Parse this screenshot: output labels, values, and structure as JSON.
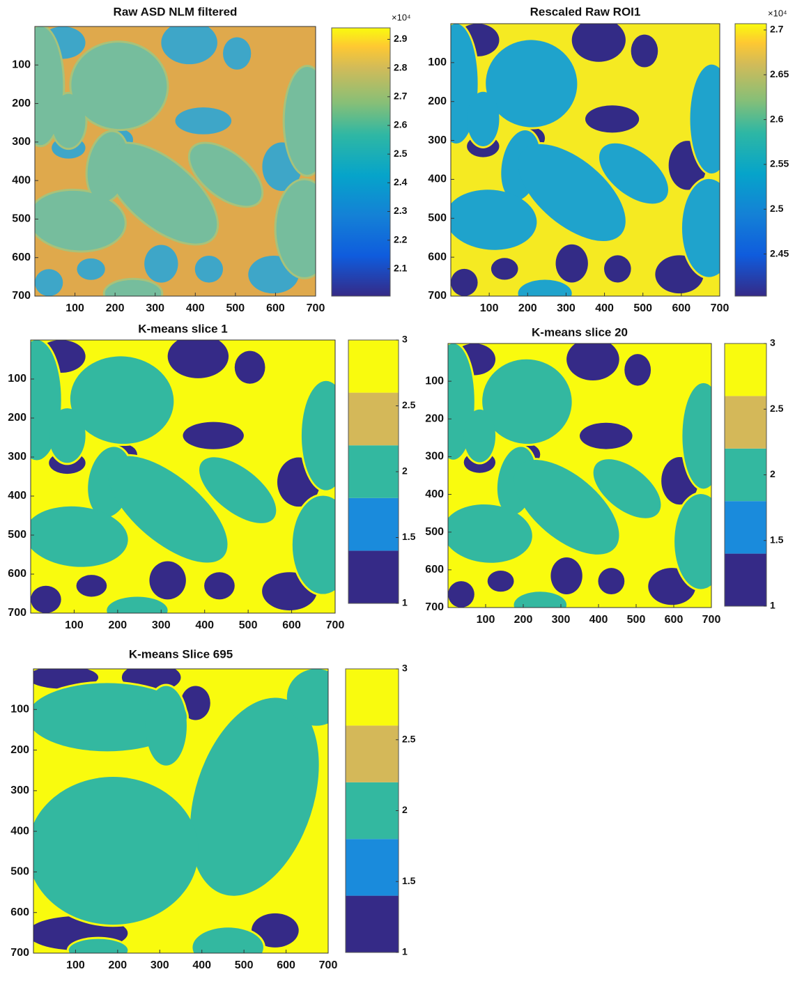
{
  "chart_data": [
    {
      "type": "image",
      "title": "Raw ASD NLM filtered",
      "xlim": [
        0,
        700
      ],
      "ylim": [
        0,
        700
      ],
      "xticks": [
        100,
        200,
        300,
        400,
        500,
        600,
        700
      ],
      "yticks": [
        100,
        200,
        300,
        400,
        500,
        600,
        700
      ],
      "colorbar": {
        "colormap": "parula",
        "lim": [
          2.005,
          2.94
        ],
        "ticks": [
          2.1,
          2.2,
          2.3,
          2.4,
          2.5,
          2.6,
          2.7,
          2.8,
          2.9
        ],
        "multiplier": "×10⁴"
      }
    },
    {
      "type": "image",
      "title": "Rescaled Raw ROI1",
      "xlim": [
        0,
        700
      ],
      "ylim": [
        0,
        700
      ],
      "xticks": [
        100,
        200,
        300,
        400,
        500,
        600,
        700
      ],
      "yticks": [
        100,
        200,
        300,
        400,
        500,
        600,
        700
      ],
      "colorbar": {
        "colormap": "parula",
        "lim": [
          2.403,
          2.707
        ],
        "ticks": [
          2.45,
          2.5,
          2.55,
          2.6,
          2.65,
          2.7
        ],
        "multiplier": "×10⁴"
      }
    },
    {
      "type": "image",
      "title": "K-means slice 1",
      "xlim": [
        0,
        700
      ],
      "ylim": [
        0,
        700
      ],
      "xticks": [
        100,
        200,
        300,
        400,
        500,
        600,
        700
      ],
      "yticks": [
        100,
        200,
        300,
        400,
        500,
        600,
        700
      ],
      "colorbar": {
        "lim": [
          1,
          3
        ],
        "ticks": [
          1,
          1.5,
          2,
          2.5,
          3
        ],
        "colors": [
          "#352a87",
          "#1a8bdc",
          "#33b8a0",
          "#d4b859",
          "#f9fb0e"
        ]
      }
    },
    {
      "type": "image",
      "title": "K-means slice 20",
      "xlim": [
        0,
        700
      ],
      "ylim": [
        0,
        700
      ],
      "xticks": [
        100,
        200,
        300,
        400,
        500,
        600,
        700
      ],
      "yticks": [
        100,
        200,
        300,
        400,
        500,
        600,
        700
      ],
      "colorbar": {
        "lim": [
          1,
          3
        ],
        "ticks": [
          1,
          1.5,
          2,
          2.5,
          3
        ],
        "colors": [
          "#352a87",
          "#1a8bdc",
          "#33b8a0",
          "#d4b859",
          "#f9fb0e"
        ]
      }
    },
    {
      "type": "image",
      "title": "K-means Slice 695",
      "xlim": [
        0,
        700
      ],
      "ylim": [
        0,
        700
      ],
      "xticks": [
        100,
        200,
        300,
        400,
        500,
        600,
        700
      ],
      "yticks": [
        100,
        200,
        300,
        400,
        500,
        600,
        700
      ],
      "colorbar": {
        "lim": [
          1,
          3
        ],
        "ticks": [
          1,
          1.5,
          2,
          2.5,
          3
        ],
        "colors": [
          "#352a87",
          "#1a8bdc",
          "#33b8a0",
          "#d4b859",
          "#f9fb0e"
        ]
      }
    }
  ]
}
